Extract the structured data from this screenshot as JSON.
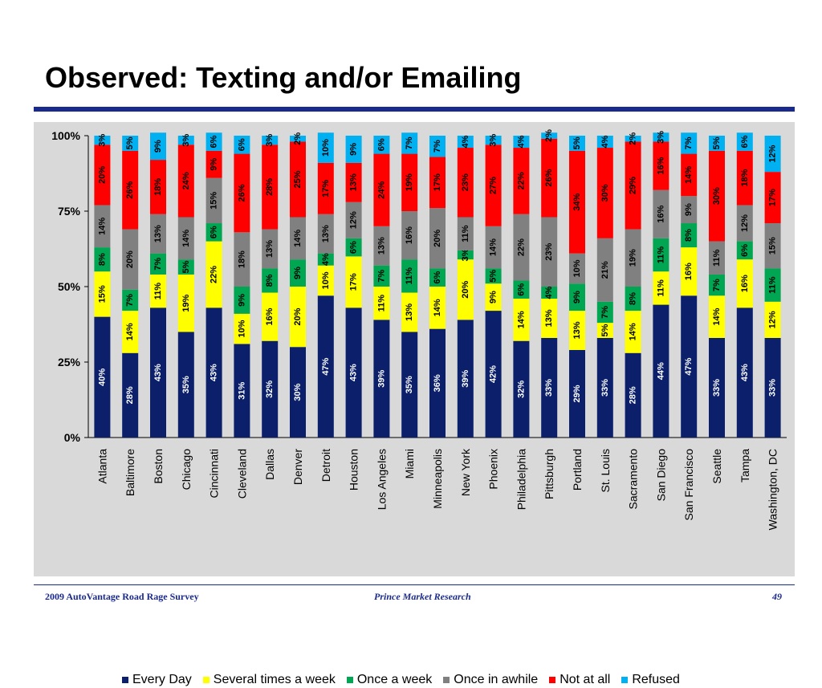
{
  "slide": {
    "title": "Observed: Texting and/or Emailing",
    "footer_left": "2009 AutoVantage Road Rage Survey",
    "footer_center": "Prince Market Research",
    "page_number": "49"
  },
  "colors": {
    "accent": "#1a2a8c",
    "panel": "#d9d9d9",
    "Every Day": "#0b1f6b",
    "Several times a week": "#ffff00",
    "Once a week": "#00a651",
    "Once in awhile": "#808080",
    "Not at all": "#ff0000",
    "Refused": "#00b0f0"
  },
  "chart_data": {
    "type": "bar",
    "stacked": true,
    "categories": [
      "Atlanta",
      "Baltimore",
      "Boston",
      "Chicago",
      "Cincinnati",
      "Cleveland",
      "Dallas",
      "Denver",
      "Detroit",
      "Houston",
      "Los Angeles",
      "Miami",
      "Minneapolis",
      "New York",
      "Phoenix",
      "Philadelphia",
      "Pittsburgh",
      "Portland",
      "St. Louis",
      "Sacramento",
      "San Diego",
      "San Francisco",
      "Seattle",
      "Tampa",
      "Washington, DC"
    ],
    "series": [
      {
        "name": "Every Day",
        "values": [
          40,
          28,
          43,
          35,
          43,
          31,
          32,
          30,
          47,
          43,
          39,
          35,
          36,
          39,
          42,
          32,
          33,
          29,
          33,
          28,
          44,
          47,
          33,
          43,
          33
        ]
      },
      {
        "name": "Several times a week",
        "values": [
          15,
          14,
          11,
          19,
          22,
          10,
          16,
          20,
          10,
          17,
          11,
          13,
          14,
          20,
          9,
          14,
          13,
          13,
          5,
          14,
          11,
          16,
          14,
          16,
          12
        ]
      },
      {
        "name": "Once a week",
        "values": [
          8,
          7,
          7,
          5,
          6,
          9,
          8,
          9,
          4,
          6,
          7,
          11,
          6,
          3,
          5,
          6,
          4,
          9,
          7,
          8,
          11,
          8,
          7,
          6,
          11
        ]
      },
      {
        "name": "Once in awhile",
        "values": [
          14,
          20,
          13,
          14,
          15,
          18,
          13,
          14,
          13,
          12,
          13,
          16,
          20,
          11,
          14,
          22,
          23,
          10,
          21,
          19,
          16,
          9,
          11,
          12,
          15
        ]
      },
      {
        "name": "Not at all",
        "values": [
          20,
          26,
          18,
          24,
          9,
          26,
          28,
          25,
          17,
          13,
          24,
          19,
          17,
          23,
          27,
          22,
          26,
          34,
          30,
          29,
          16,
          14,
          30,
          18,
          17
        ]
      },
      {
        "name": "Refused",
        "values": [
          3,
          5,
          9,
          3,
          6,
          6,
          3,
          2,
          10,
          9,
          6,
          7,
          7,
          4,
          3,
          4,
          2,
          5,
          4,
          2,
          3,
          7,
          5,
          6,
          12
        ]
      }
    ],
    "yticks": [
      "0%",
      "25%",
      "50%",
      "75%",
      "100%"
    ],
    "ylim": [
      0,
      100
    ],
    "legend_position": "bottom",
    "grid": false,
    "data_labels": true,
    "label_format": "percent"
  }
}
